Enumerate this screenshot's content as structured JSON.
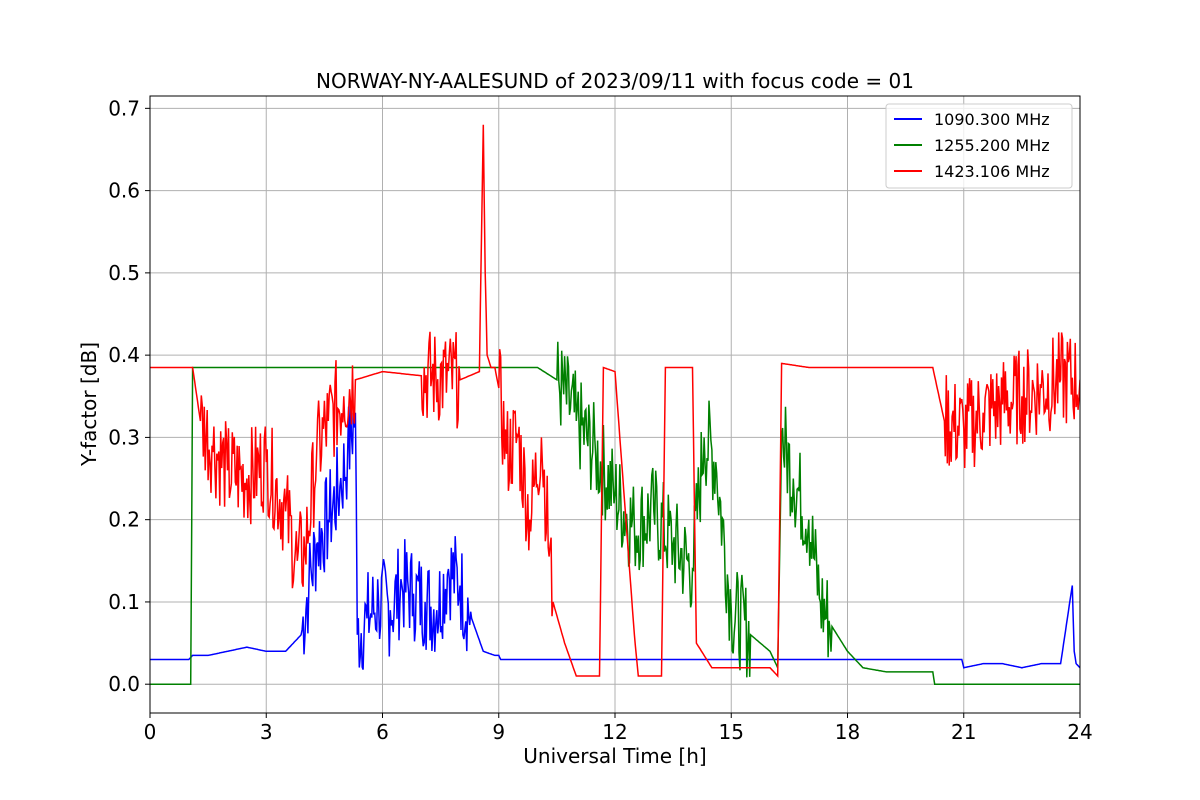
{
  "chart_data": {
    "type": "line",
    "title": "NORWAY-NY-AALESUND of 2023/09/11 with focus code = 01",
    "xlabel": "Universal Time [h]",
    "ylabel": "Y-factor [dB]",
    "xlim": [
      0,
      24
    ],
    "ylim": [
      -0.035,
      0.715
    ],
    "xticks": [
      0,
      3,
      6,
      9,
      12,
      15,
      18,
      21,
      24
    ],
    "yticks": [
      0.0,
      0.1,
      0.2,
      0.3,
      0.4,
      0.5,
      0.6,
      0.7
    ],
    "ytick_labels": [
      "0.0",
      "0.1",
      "0.2",
      "0.3",
      "0.4",
      "0.5",
      "0.6",
      "0.7"
    ],
    "grid": true,
    "legend_position": "top-right",
    "series": [
      {
        "name": "1090.300 MHz",
        "color": "#0000ff",
        "note_shape": "noisy",
        "x": [
          0,
          1.0,
          1.1,
          1.5,
          2.0,
          2.5,
          3.0,
          3.5,
          3.9,
          4.1,
          4.3,
          4.6,
          4.9,
          5.1,
          5.3,
          5.35,
          5.6,
          5.9,
          6.2,
          6.5,
          6.8,
          7.1,
          7.4,
          7.7,
          8.0,
          8.3,
          8.6,
          8.9,
          9.0,
          9.05,
          10.5,
          15.0,
          20.0,
          20.95,
          21.0,
          21.5,
          22.0,
          22.5,
          23.0,
          23.5,
          23.8,
          23.85,
          23.9,
          24.0
        ],
        "y": [
          0.03,
          0.03,
          0.035,
          0.035,
          0.04,
          0.045,
          0.04,
          0.04,
          0.06,
          0.12,
          0.17,
          0.2,
          0.24,
          0.28,
          0.33,
          0.06,
          0.08,
          0.1,
          0.09,
          0.12,
          0.11,
          0.1,
          0.09,
          0.14,
          0.12,
          0.08,
          0.04,
          0.035,
          0.035,
          0.03,
          0.03,
          0.03,
          0.03,
          0.03,
          0.02,
          0.025,
          0.025,
          0.02,
          0.025,
          0.025,
          0.12,
          0.04,
          0.025,
          0.02
        ]
      },
      {
        "name": "1255.200 MHz",
        "color": "#008000",
        "note_shape": "noisy",
        "x": [
          0,
          1.05,
          1.1,
          5.0,
          8.0,
          10.0,
          10.5,
          11.0,
          11.5,
          12.0,
          12.5,
          13.0,
          13.5,
          14.0,
          14.3,
          14.6,
          15.0,
          15.5,
          16.0,
          16.2,
          16.3,
          16.6,
          17.0,
          17.3,
          17.6,
          18.0,
          18.4,
          19.0,
          19.5,
          20.2,
          20.25,
          24.0
        ],
        "y": [
          0.0,
          0.0,
          0.385,
          0.385,
          0.385,
          0.385,
          0.37,
          0.32,
          0.28,
          0.23,
          0.19,
          0.21,
          0.17,
          0.14,
          0.3,
          0.27,
          0.09,
          0.06,
          0.04,
          0.02,
          0.3,
          0.25,
          0.2,
          0.1,
          0.07,
          0.04,
          0.02,
          0.015,
          0.015,
          0.015,
          0.0,
          0.0
        ]
      },
      {
        "name": "1423.106 MHz",
        "color": "#ff0000",
        "note_shape": "noisy",
        "x": [
          0,
          1.1,
          1.3,
          1.6,
          2.0,
          2.5,
          3.0,
          3.5,
          3.8,
          4.0,
          4.3,
          4.6,
          5.0,
          5.3,
          6.0,
          7.0,
          8.0,
          8.5,
          8.6,
          8.65,
          8.7,
          8.8,
          8.9,
          9.0,
          9.2,
          9.5,
          9.8,
          10.1,
          10.4,
          10.7,
          11.0,
          11.3,
          11.6,
          11.7,
          12.0,
          12.5,
          12.6,
          13.0,
          13.2,
          13.3,
          14.0,
          14.1,
          14.5,
          15.0,
          15.5,
          16.0,
          16.2,
          16.3,
          17.0,
          18.0,
          19.0,
          20.2,
          20.5,
          21.0,
          21.5,
          22.0,
          22.5,
          23.0,
          23.5,
          24.0
        ],
        "y": [
          0.385,
          0.385,
          0.32,
          0.29,
          0.26,
          0.25,
          0.27,
          0.21,
          0.15,
          0.16,
          0.28,
          0.32,
          0.35,
          0.37,
          0.38,
          0.375,
          0.37,
          0.38,
          0.68,
          0.5,
          0.4,
          0.385,
          0.385,
          0.36,
          0.28,
          0.3,
          0.2,
          0.3,
          0.1,
          0.05,
          0.01,
          0.01,
          0.01,
          0.385,
          0.38,
          0.06,
          0.01,
          0.01,
          0.01,
          0.385,
          0.385,
          0.05,
          0.02,
          0.02,
          0.02,
          0.02,
          0.01,
          0.39,
          0.385,
          0.385,
          0.385,
          0.385,
          0.32,
          0.31,
          0.33,
          0.34,
          0.35,
          0.36,
          0.37,
          0.37
        ]
      }
    ]
  }
}
